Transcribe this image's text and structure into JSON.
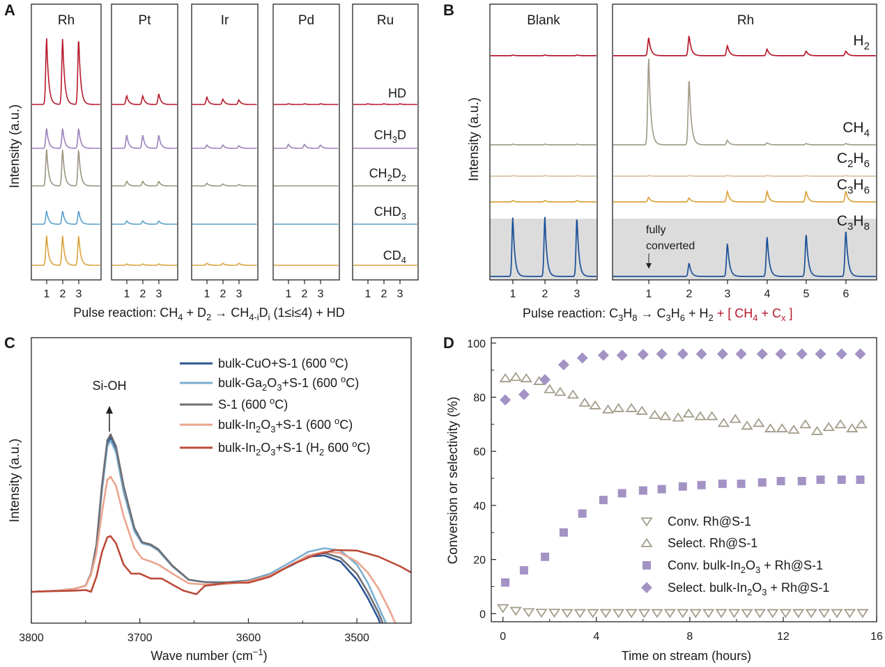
{
  "chart_data": [
    {
      "panel": "A",
      "type": "line",
      "title": "Pulse reaction: CH4 + D2 → CH4-iDi (1≤i≤4) + HD",
      "title_parts": [
        "Pulse reaction: CH",
        "4",
        " + D",
        "2",
        " → CH",
        "4-i",
        "D",
        "i",
        " (1≤i≤4) + HD"
      ],
      "ylabel": "Intensity (a.u.)",
      "pulses": [
        "1",
        "2",
        "3"
      ],
      "catalysts": [
        "Rh",
        "Pt",
        "Ir",
        "Pd",
        "Ru"
      ],
      "series_labels": [
        {
          "name": "HD",
          "parts": [
            "HD"
          ]
        },
        {
          "name": "CH3D",
          "parts": [
            "CH",
            "3",
            "D"
          ]
        },
        {
          "name": "CH2D2",
          "parts": [
            "CH",
            "2",
            "D",
            "2"
          ]
        },
        {
          "name": "CHD3",
          "parts": [
            "CHD",
            "3"
          ]
        },
        {
          "name": "CD4",
          "parts": [
            "CD",
            "4"
          ]
        }
      ],
      "series_colors": [
        "#b5182c",
        "#9b80b8",
        "#9a9480",
        "#5aa0c8",
        "#d9a33a"
      ],
      "peak_heights_au": {
        "Rh": [
          [
            1.0,
            1.0,
            1.0
          ],
          [
            0.3,
            0.3,
            0.3
          ],
          [
            0.55,
            0.55,
            0.55
          ],
          [
            0.2,
            0.2,
            0.2
          ],
          [
            0.45,
            0.45,
            0.45
          ]
        ],
        "Pt": [
          [
            0.13,
            0.13,
            0.16
          ],
          [
            0.2,
            0.2,
            0.2
          ],
          [
            0.07,
            0.07,
            0.07
          ],
          [
            0.05,
            0.05,
            0.05
          ],
          [
            0.02,
            0.02,
            0.02
          ]
        ],
        "Ir": [
          [
            0.11,
            0.08,
            0.07
          ],
          [
            0.05,
            0.05,
            0.04
          ],
          [
            0.04,
            0.03,
            0.02
          ],
          [
            0.0,
            0.0,
            0.0
          ],
          [
            0.03,
            0.03,
            0.03
          ]
        ],
        "Pd": [
          [
            0.01,
            0.01,
            0.01
          ],
          [
            0.06,
            0.06,
            0.05
          ],
          [
            0.0,
            0.0,
            0.0
          ],
          [
            0.0,
            0.0,
            0.0
          ],
          [
            0.0,
            0.0,
            0.0
          ]
        ],
        "Ru": [
          [
            0.01,
            0.01,
            0.01
          ],
          [
            0.0,
            0.0,
            0.0
          ],
          [
            0.0,
            0.0,
            0.0
          ],
          [
            0.0,
            0.0,
            0.0
          ],
          [
            0.0,
            0.0,
            0.0
          ]
        ]
      }
    },
    {
      "panel": "B",
      "type": "line",
      "title": "Pulse reaction: C3H8 → C3H6 + H2 + [ CH4 + Cx ]",
      "title_parts_black": [
        "Pulse reaction: C",
        "3",
        "H",
        "8",
        " → C",
        "3",
        "H",
        "6",
        " + H",
        "2"
      ],
      "title_parts_red": [
        " + [ CH",
        "4",
        " + C",
        "x",
        " ]"
      ],
      "ylabel": "Intensity (a.u.)",
      "blank_title": "Blank",
      "rh_title": "Rh",
      "blank_pulses": [
        "1",
        "2",
        "3"
      ],
      "rh_pulses": [
        "1",
        "2",
        "3",
        "4",
        "5",
        "6"
      ],
      "annotation": [
        "fully",
        "converted"
      ],
      "series_labels": [
        {
          "name": "H2",
          "parts": [
            "H",
            "2"
          ]
        },
        {
          "name": "CH4",
          "parts": [
            "CH",
            "4"
          ]
        },
        {
          "name": "C2H6",
          "parts": [
            "C",
            "2",
            "H",
            "6"
          ]
        },
        {
          "name": "C3H6",
          "parts": [
            "C",
            "3",
            "H",
            "6"
          ]
        },
        {
          "name": "C3H8",
          "parts": [
            "C",
            "3",
            "H",
            "8"
          ]
        }
      ],
      "series_colors": [
        "#b5182c",
        "#a39c8a",
        "#d8c4a0",
        "#d9a33a",
        "#1a4f96"
      ],
      "blank_peak_heights_au": [
        [
          0.01,
          0.01,
          0.01
        ],
        [
          0.01,
          0.01,
          0.01
        ],
        [
          0.01,
          0.01,
          0.01
        ],
        [
          0.02,
          0.02,
          0.02
        ],
        [
          0.9,
          0.9,
          0.9
        ]
      ],
      "rh_peak_heights_au": [
        [
          0.27,
          0.3,
          0.15,
          0.1,
          0.07,
          0.07
        ],
        [
          1.3,
          1.0,
          0.07,
          0.03,
          0.02,
          0.02
        ],
        [
          0.01,
          0.01,
          0.01,
          0.01,
          0.01,
          0.01
        ],
        [
          0.07,
          0.06,
          0.16,
          0.16,
          0.16,
          0.16
        ],
        [
          0.0,
          0.2,
          0.5,
          0.6,
          0.65,
          0.7
        ]
      ]
    },
    {
      "panel": "C",
      "type": "line",
      "xlabel": "Wave number (cm−1)",
      "xlabel_parts": [
        "Wave number (cm",
        "−1",
        ")"
      ],
      "ylabel": "Intensity (a.u.)",
      "x_reversed": true,
      "xlim": [
        3800,
        3450
      ],
      "xticks": [
        "3800",
        "3700",
        "3600",
        "3500"
      ],
      "annotation": "Si-OH",
      "series": [
        {
          "name": "bulk-CuO+S-1 (600 oC)",
          "label_parts": [
            "bulk-CuO+S-1 (600 ",
            "o",
            "C)"
          ],
          "color": "#2d5494",
          "x": [
            3800,
            3775,
            3760,
            3750,
            3745,
            3740,
            3735,
            3730,
            3727,
            3722,
            3715,
            3705,
            3698,
            3690,
            3683,
            3670,
            3655,
            3640,
            3620,
            3600,
            3580,
            3560,
            3545,
            3530,
            3515,
            3500,
            3490,
            3480,
            3475
          ],
          "y": [
            0.0,
            0.02,
            0.05,
            0.1,
            0.3,
            0.75,
            1.7,
            2.45,
            2.55,
            2.35,
            1.7,
            1.05,
            0.82,
            0.78,
            0.7,
            0.43,
            0.2,
            0.16,
            0.15,
            0.18,
            0.27,
            0.44,
            0.58,
            0.6,
            0.5,
            0.2,
            -0.1,
            -0.45,
            -0.7
          ]
        },
        {
          "name": "bulk-Ga2O3+S-1 (600 oC)",
          "label_parts": [
            "bulk-Ga",
            "2",
            "O",
            "3",
            "+S-1 (600 ",
            "o",
            "C)"
          ],
          "color": "#7aaed0",
          "x": [
            3800,
            3775,
            3760,
            3750,
            3745,
            3740,
            3735,
            3730,
            3727,
            3722,
            3715,
            3705,
            3698,
            3690,
            3683,
            3670,
            3655,
            3640,
            3620,
            3600,
            3580,
            3560,
            3545,
            3530,
            3515,
            3500,
            3490,
            3480,
            3470
          ],
          "y": [
            0.0,
            0.02,
            0.05,
            0.1,
            0.3,
            0.75,
            1.65,
            2.4,
            2.5,
            2.3,
            1.65,
            1.0,
            0.8,
            0.76,
            0.68,
            0.42,
            0.2,
            0.16,
            0.16,
            0.19,
            0.3,
            0.5,
            0.66,
            0.72,
            0.68,
            0.45,
            0.15,
            -0.25,
            -0.65
          ]
        },
        {
          "name": "S-1 (600 oC)",
          "label_parts": [
            "S-1 (600 ",
            "o",
            "C)"
          ],
          "color": "#6e6e74",
          "x": [
            3800,
            3775,
            3760,
            3750,
            3745,
            3740,
            3735,
            3730,
            3727,
            3722,
            3715,
            3705,
            3698,
            3690,
            3683,
            3670,
            3655,
            3640,
            3620,
            3600,
            3580,
            3560,
            3545,
            3530,
            3515,
            3500,
            3490,
            3480,
            3472
          ],
          "y": [
            0.0,
            0.02,
            0.05,
            0.1,
            0.3,
            0.78,
            1.75,
            2.5,
            2.6,
            2.4,
            1.75,
            1.05,
            0.82,
            0.78,
            0.7,
            0.43,
            0.2,
            0.16,
            0.15,
            0.18,
            0.27,
            0.45,
            0.6,
            0.64,
            0.56,
            0.3,
            0.0,
            -0.35,
            -0.7
          ]
        },
        {
          "name": "bulk-In2O3+S-1 (600 oC)",
          "label_parts": [
            "bulk-In",
            "2",
            "O",
            "3",
            "+S-1 (600 ",
            "o",
            "C)"
          ],
          "color": "#eba48e",
          "x": [
            3800,
            3775,
            3760,
            3750,
            3745,
            3740,
            3735,
            3730,
            3727,
            3722,
            3715,
            3705,
            3698,
            3690,
            3683,
            3670,
            3655,
            3640,
            3620,
            3600,
            3580,
            3560,
            3545,
            3530,
            3515,
            3500,
            3490,
            3480,
            3470,
            3460
          ],
          "y": [
            0.0,
            0.02,
            0.05,
            0.1,
            0.28,
            0.65,
            1.3,
            1.85,
            1.9,
            1.75,
            1.25,
            0.72,
            0.55,
            0.5,
            0.45,
            0.3,
            0.14,
            0.12,
            0.13,
            0.17,
            0.27,
            0.45,
            0.6,
            0.66,
            0.64,
            0.5,
            0.32,
            0.05,
            -0.3,
            -0.7
          ]
        },
        {
          "name": "bulk-In2O3+S-1 (H2 600 oC)",
          "label_parts": [
            "bulk-In",
            "2",
            "O",
            "3",
            "+S-1 (H",
            "2",
            " 600 ",
            "o",
            "C)"
          ],
          "color": "#bb4a38",
          "x": [
            3800,
            3780,
            3760,
            3750,
            3745,
            3740,
            3735,
            3730,
            3727,
            3722,
            3715,
            3708,
            3700,
            3690,
            3680,
            3670,
            3660,
            3648,
            3640,
            3630,
            3620,
            3600,
            3580,
            3560,
            3540,
            3520,
            3500,
            3480,
            3460,
            3450
          ],
          "y": [
            0.0,
            0.01,
            0.02,
            0.03,
            0.0,
            0.25,
            0.65,
            0.9,
            0.92,
            0.8,
            0.45,
            0.3,
            0.3,
            0.22,
            0.22,
            0.12,
            0.02,
            -0.04,
            0.1,
            0.12,
            0.15,
            0.15,
            0.25,
            0.45,
            0.6,
            0.69,
            0.68,
            0.58,
            0.42,
            0.32
          ]
        }
      ]
    },
    {
      "panel": "D",
      "type": "scatter",
      "xlabel": "Time on stream (hours)",
      "ylabel": "Conversion or selectivity (%)",
      "xlim": [
        -0.5,
        16
      ],
      "ylim": [
        -3,
        102
      ],
      "xticks": [
        "0",
        "4",
        "8",
        "12",
        "16"
      ],
      "yticks": [
        "0",
        "20",
        "40",
        "60",
        "80",
        "100"
      ],
      "series": [
        {
          "name": "Conv. Rh@S-1",
          "label_parts": [
            "Conv. Rh@S-1"
          ],
          "marker": "triangle-down",
          "color": "#a39c8a",
          "x": [
            0.0,
            0.55,
            1.1,
            1.65,
            2.2,
            2.75,
            3.3,
            3.85,
            4.4,
            4.95,
            5.5,
            6.05,
            6.6,
            7.15,
            7.7,
            8.25,
            8.8,
            9.35,
            9.9,
            10.45,
            11.0,
            11.55,
            12.1,
            12.65,
            13.2,
            13.75,
            14.3,
            14.85,
            15.4
          ],
          "y": [
            2,
            1,
            0.5,
            0.3,
            0.3,
            0.2,
            0.2,
            0.2,
            0.2,
            0.2,
            0.2,
            0.2,
            0.2,
            0.2,
            0.2,
            0.2,
            0.2,
            0.2,
            0.2,
            0.2,
            0.2,
            0.2,
            0.2,
            0.2,
            0.2,
            0.2,
            0.2,
            0.2,
            0.2
          ]
        },
        {
          "name": "Select. Rh@S-1",
          "label_parts": [
            "Select. Rh@S-1"
          ],
          "marker": "triangle-up",
          "color": "#a39c8a",
          "x": [
            0.1,
            0.55,
            1.0,
            1.55,
            2.0,
            2.45,
            3.0,
            3.5,
            3.95,
            4.5,
            4.95,
            5.5,
            5.95,
            6.5,
            6.95,
            7.5,
            7.95,
            8.45,
            8.95,
            9.45,
            9.95,
            10.45,
            10.95,
            11.45,
            11.95,
            12.45,
            12.95,
            13.45,
            13.95,
            14.45,
            14.95,
            15.35
          ],
          "y": [
            87,
            87.5,
            87,
            86,
            83,
            82,
            81,
            78,
            77,
            75.5,
            76,
            76,
            75,
            73.5,
            73,
            72.5,
            74,
            73,
            73,
            70.5,
            72,
            69.5,
            70.5,
            68.5,
            68.5,
            68,
            70,
            67.5,
            69,
            70,
            68.5,
            70
          ]
        },
        {
          "name": "Conv. bulk-In2O3 + Rh@S-1",
          "label_parts": [
            "Conv. bulk-In",
            "2",
            "O",
            "3",
            " + Rh@S-1"
          ],
          "marker": "square",
          "color": "#a392c4",
          "x": [
            0.1,
            0.9,
            1.8,
            2.6,
            3.4,
            4.3,
            5.1,
            6.0,
            6.8,
            7.7,
            8.5,
            9.4,
            10.2,
            11.1,
            11.9,
            12.8,
            13.6,
            14.5,
            15.3
          ],
          "y": [
            11.5,
            16,
            21,
            30,
            37,
            42,
            44.5,
            45.5,
            46,
            47,
            47.5,
            48,
            48,
            48.5,
            49,
            49,
            49.5,
            49.5,
            49.5
          ]
        },
        {
          "name": "Select. bulk-In2O3 + Rh@S-1",
          "label_parts": [
            "Select. bulk-In",
            "2",
            "O",
            "3",
            " + Rh@S-1"
          ],
          "marker": "diamond",
          "color": "#a392c4",
          "x": [
            0.1,
            0.9,
            1.8,
            2.6,
            3.4,
            4.3,
            5.1,
            6.0,
            6.8,
            7.7,
            8.5,
            9.4,
            10.2,
            11.1,
            11.9,
            12.8,
            13.6,
            14.5,
            15.3
          ],
          "y": [
            79,
            81,
            86.5,
            92,
            94.5,
            95.5,
            95.5,
            95.8,
            96,
            96,
            96,
            96,
            96,
            96,
            96,
            96,
            96,
            96,
            96
          ]
        }
      ]
    }
  ]
}
